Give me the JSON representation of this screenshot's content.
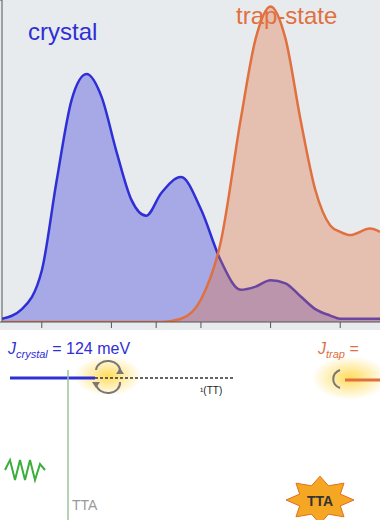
{
  "chart_data": {
    "type": "area",
    "tick_labels": false,
    "grid": false,
    "legend": "none",
    "x": [
      0,
      20,
      40,
      55,
      70,
      85,
      100,
      115,
      130,
      145,
      160,
      180,
      200,
      220,
      240,
      255,
      270,
      285,
      300,
      315,
      330,
      340,
      350,
      370,
      380
    ],
    "xlim": [
      0,
      380
    ],
    "xticks": [
      40,
      110,
      155,
      200,
      270,
      340
    ],
    "ylim": [
      0,
      1
    ],
    "yticks": [
      0,
      1
    ],
    "series": [
      {
        "name": "crystal",
        "color": "#2f2fd6",
        "values": [
          0.01,
          0.04,
          0.16,
          0.44,
          0.69,
          0.77,
          0.7,
          0.53,
          0.38,
          0.33,
          0.4,
          0.45,
          0.35,
          0.19,
          0.1,
          0.11,
          0.13,
          0.12,
          0.08,
          0.04,
          0.02,
          0.01,
          0.01,
          0.01,
          0.01
        ]
      },
      {
        "name": "trap-state",
        "color": "#e0703e",
        "values": [
          0,
          0,
          0,
          0,
          0,
          0,
          0,
          0,
          0,
          0,
          0,
          0.01,
          0.07,
          0.25,
          0.63,
          0.88,
          0.98,
          0.88,
          0.63,
          0.41,
          0.3,
          0.28,
          0.27,
          0.29,
          0.28
        ]
      }
    ],
    "annotations": {
      "j_crystal": {
        "symbol": "J",
        "subscript": "crystal",
        "text": " = 124 meV"
      },
      "j_trap": {
        "symbol": "J",
        "subscript": "trap",
        "text": " ="
      },
      "state": "¹(TT)",
      "tta_left": "TTA",
      "tta_right": "TTA"
    }
  }
}
